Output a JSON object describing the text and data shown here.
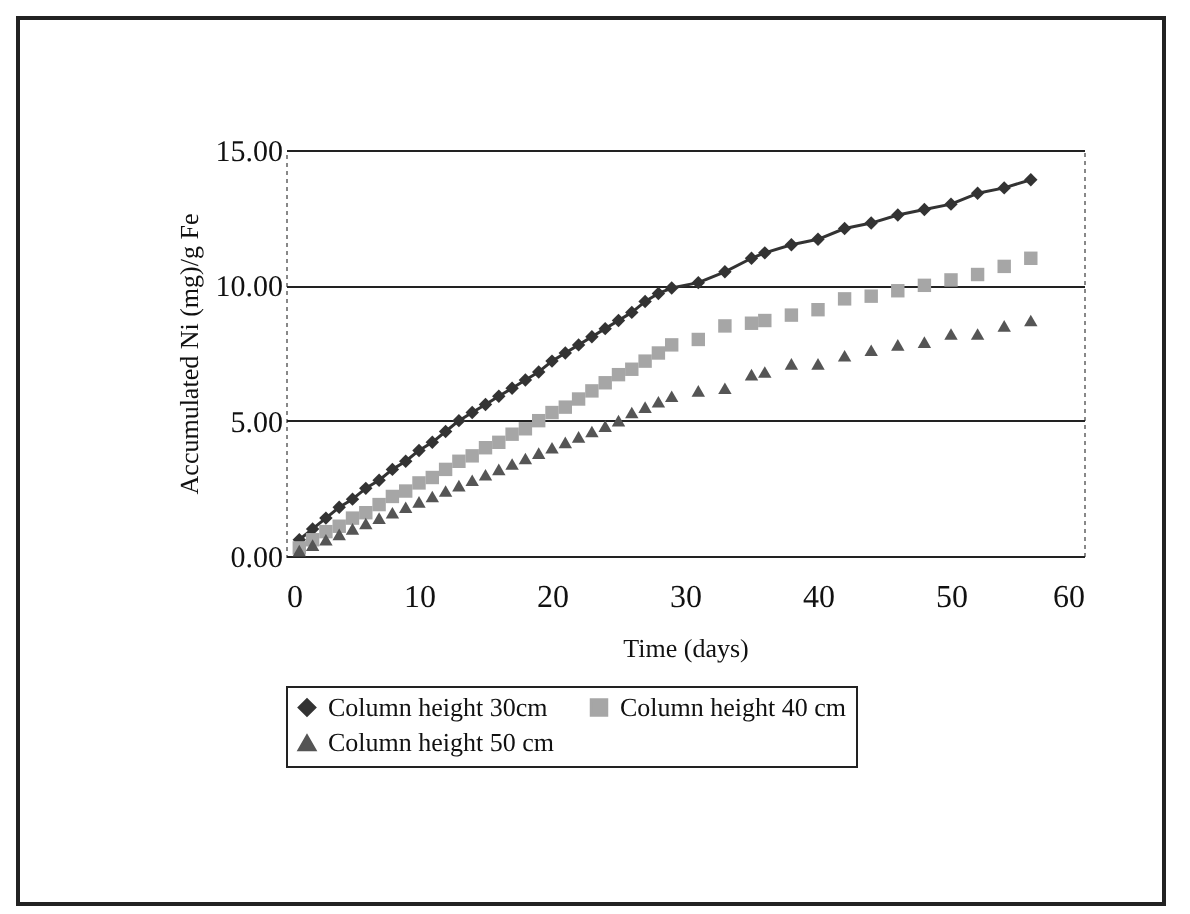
{
  "chart_data": {
    "type": "line",
    "xlabel": "Time (days)",
    "ylabel": "Accumulated Ni (mg)/g Fe",
    "x": [
      1,
      2,
      3,
      4,
      5,
      6,
      7,
      8,
      9,
      10,
      11,
      12,
      13,
      14,
      15,
      16,
      17,
      18,
      19,
      20,
      21,
      22,
      23,
      24,
      25,
      26,
      27,
      28,
      29,
      31,
      33,
      35,
      36,
      38,
      40,
      42,
      44,
      46,
      48,
      50,
      52,
      54,
      56
    ],
    "series": [
      {
        "name": "Column height 30cm",
        "marker": "diamond",
        "color": "#333333",
        "values": [
          0.6,
          1.0,
          1.4,
          1.8,
          2.1,
          2.5,
          2.8,
          3.2,
          3.5,
          3.9,
          4.2,
          4.6,
          5.0,
          5.3,
          5.6,
          5.9,
          6.2,
          6.5,
          6.8,
          7.2,
          7.5,
          7.8,
          8.1,
          8.4,
          8.7,
          9.0,
          9.4,
          9.7,
          9.9,
          10.1,
          10.5,
          11.0,
          11.2,
          11.5,
          11.7,
          12.1,
          12.3,
          12.6,
          12.8,
          13.0,
          13.4,
          13.6,
          13.9
        ]
      },
      {
        "name": "Column height 40 cm",
        "type": "scatter",
        "marker": "square",
        "color": "#a6a6a6",
        "values": [
          0.3,
          0.6,
          0.9,
          1.1,
          1.4,
          1.6,
          1.9,
          2.2,
          2.4,
          2.7,
          2.9,
          3.2,
          3.5,
          3.7,
          4.0,
          4.2,
          4.5,
          4.7,
          5.0,
          5.3,
          5.5,
          5.8,
          6.1,
          6.4,
          6.7,
          6.9,
          7.2,
          7.5,
          7.8,
          8.0,
          8.5,
          8.6,
          8.7,
          8.9,
          9.1,
          9.5,
          9.6,
          9.8,
          10.0,
          10.2,
          10.4,
          10.7,
          11.0
        ]
      },
      {
        "name": "Column height 50 cm",
        "type": "scatter",
        "marker": "triangle",
        "color": "#555555",
        "values": [
          0.2,
          0.4,
          0.6,
          0.8,
          1.0,
          1.2,
          1.4,
          1.6,
          1.8,
          2.0,
          2.2,
          2.4,
          2.6,
          2.8,
          3.0,
          3.2,
          3.4,
          3.6,
          3.8,
          4.0,
          4.2,
          4.4,
          4.6,
          4.8,
          5.0,
          5.3,
          5.5,
          5.7,
          5.9,
          6.1,
          6.2,
          6.7,
          6.8,
          7.1,
          7.1,
          7.4,
          7.6,
          7.8,
          7.9,
          8.2,
          8.2,
          8.5,
          8.7
        ]
      }
    ],
    "xlim": [
      0,
      60
    ],
    "xticks": [
      0,
      10,
      20,
      30,
      40,
      50,
      60
    ],
    "ylim": [
      0,
      15
    ],
    "yticks": [
      {
        "value": 0,
        "label": "0.00"
      },
      {
        "value": 5,
        "label": "5.00"
      },
      {
        "value": 10,
        "label": "10.00"
      },
      {
        "value": 15,
        "label": "15.00"
      }
    ],
    "grid": "y",
    "legend": "bottom"
  }
}
